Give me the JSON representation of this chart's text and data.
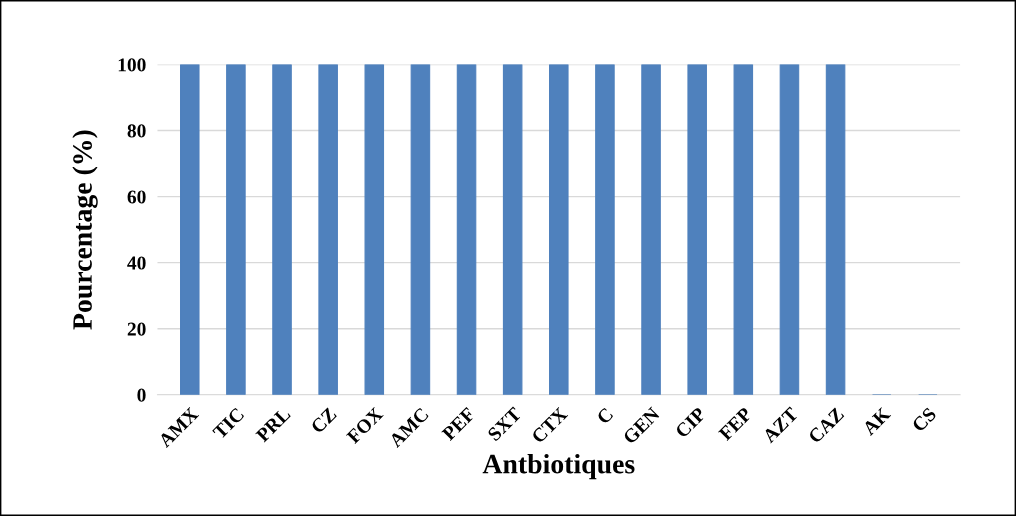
{
  "chart_data": {
    "type": "bar",
    "xlabel": "Antbiotiques",
    "ylabel": "Pourcentage (%)",
    "categories": [
      "AMX",
      "TIC",
      "PRL",
      "CZ",
      "FOX",
      "AMC",
      "PEF",
      "SXT",
      "CTX",
      "C",
      "GEN",
      "CIP",
      "FEP",
      "AZT",
      "CAZ",
      "AK",
      "CS"
    ],
    "values": [
      100,
      100,
      100,
      100,
      100,
      100,
      100,
      100,
      100,
      100,
      100,
      100,
      100,
      100,
      100,
      0,
      0
    ],
    "color": "#4f81bd",
    "ylim": [
      0,
      100
    ],
    "yticks": [
      0,
      20,
      40,
      60,
      80,
      100
    ],
    "grid": "y"
  }
}
